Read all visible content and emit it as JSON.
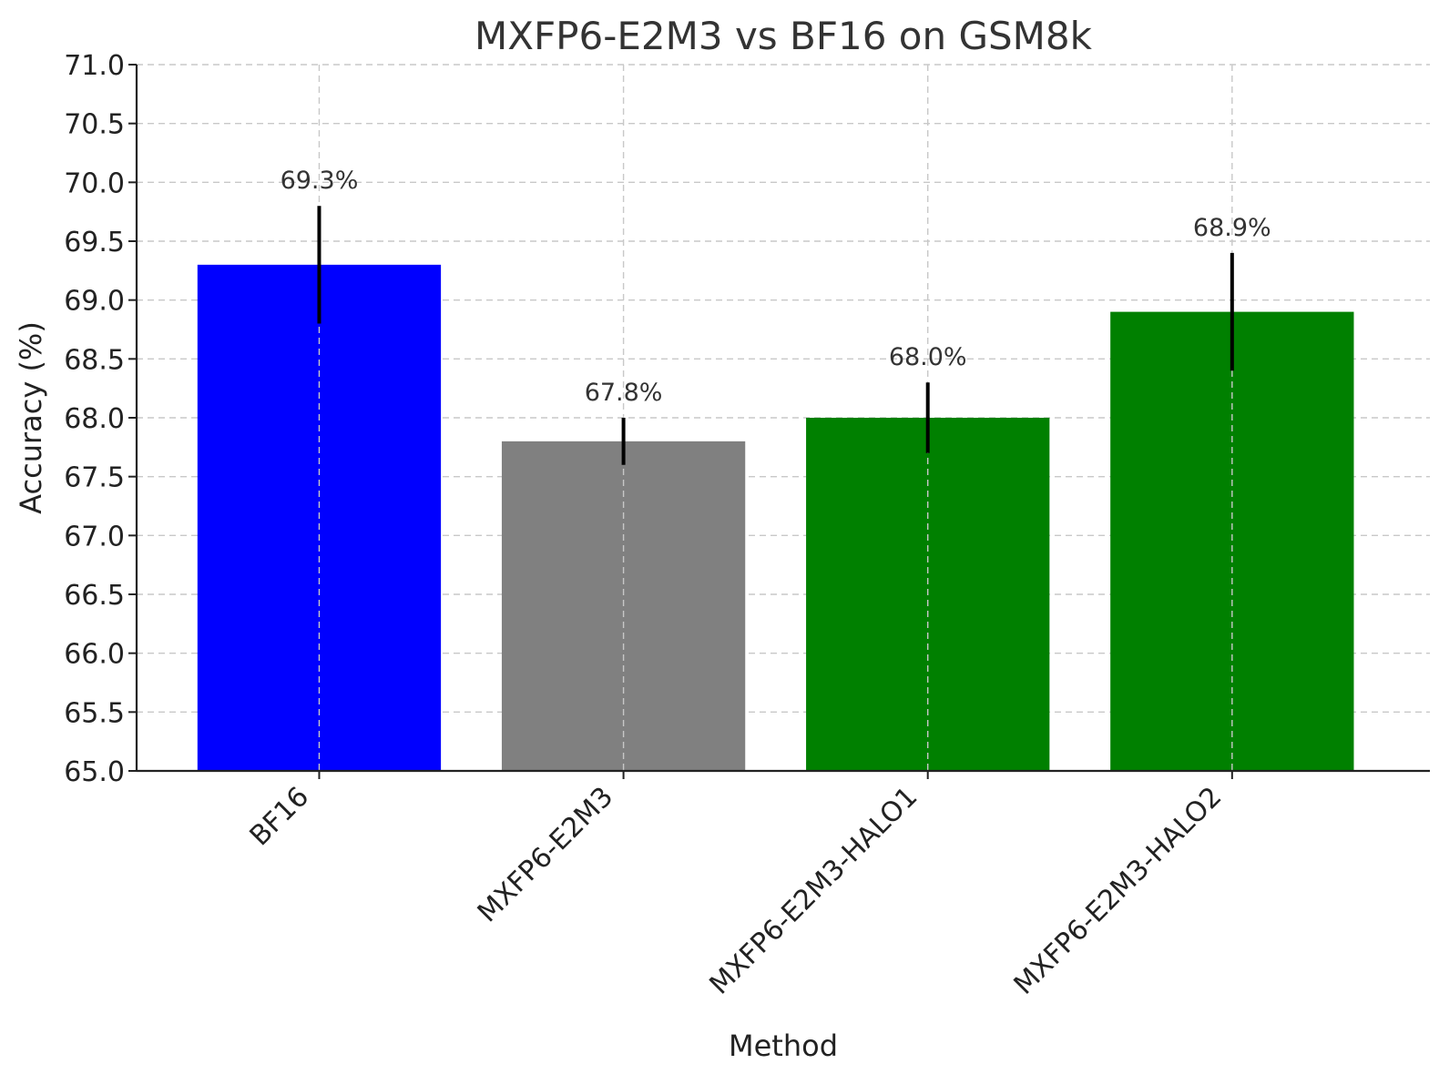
{
  "chart_data": {
    "type": "bar",
    "title": "MXFP6-E2M3 vs BF16 on GSM8k",
    "xlabel": "Method",
    "ylabel": "Accuracy (%)",
    "ylim": [
      65.0,
      71.0
    ],
    "yticks": [
      "65.0",
      "65.5",
      "66.0",
      "66.5",
      "67.0",
      "67.5",
      "68.0",
      "68.5",
      "69.0",
      "69.5",
      "70.0",
      "70.5",
      "71.0"
    ],
    "grid": true,
    "categories": [
      "BF16",
      "MXFP6-E2M3",
      "MXFP6-E2M3-HALO1",
      "MXFP6-E2M3-HALO2"
    ],
    "values": [
      69.3,
      67.8,
      68.0,
      68.9
    ],
    "errors": [
      0.5,
      0.2,
      0.3,
      0.5
    ],
    "data_labels": [
      "69.3%",
      "67.8%",
      "68.0%",
      "68.9%"
    ],
    "colors": [
      "#0000ff",
      "#808080",
      "#008000",
      "#008000"
    ],
    "error_color": "#000000"
  }
}
